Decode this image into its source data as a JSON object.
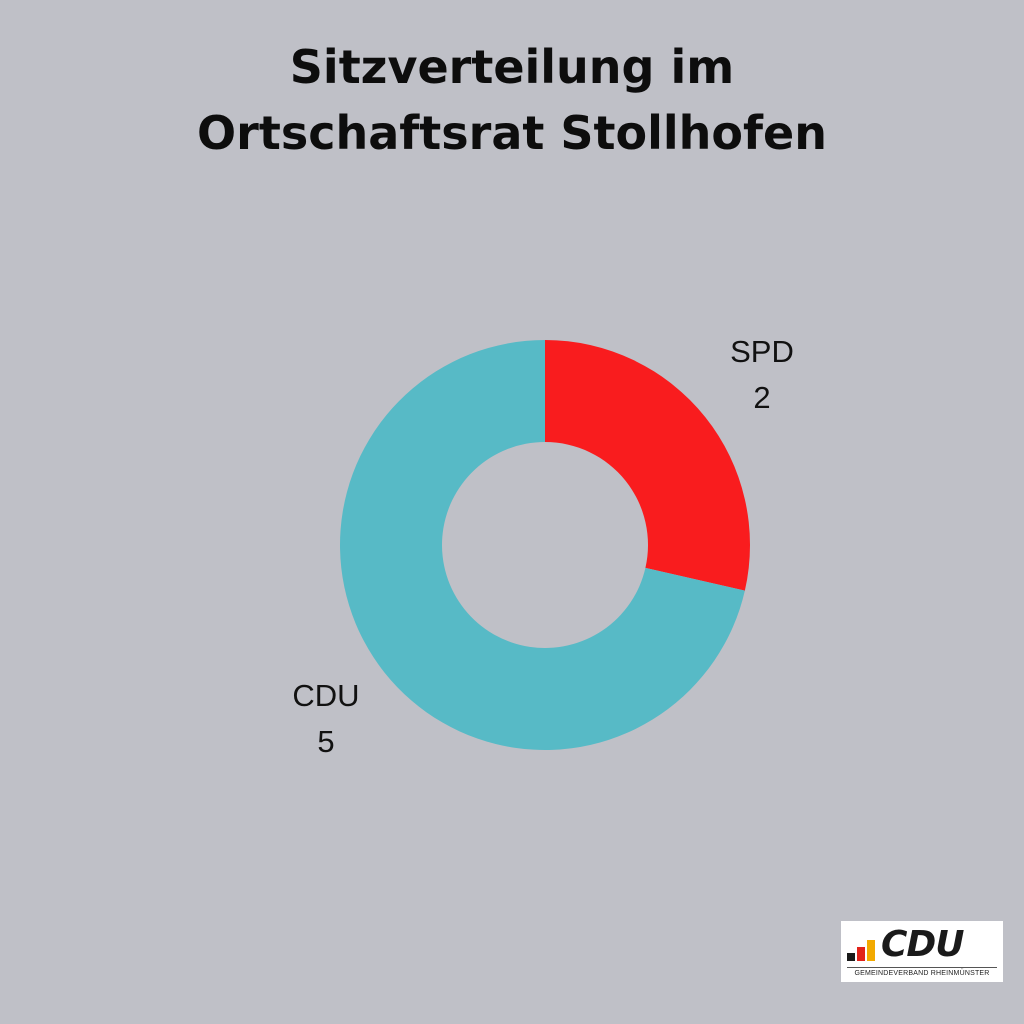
{
  "chart_data": {
    "type": "pie",
    "donut": true,
    "title": [
      "Sitzverteilung im",
      "Ortschaftsrat Stollhofen"
    ],
    "slices": [
      {
        "label": "SPD",
        "value": 2,
        "color": "#f91c1e"
      },
      {
        "label": "CDU",
        "value": 5,
        "color": "#57bac6"
      }
    ],
    "legend": "none",
    "labels": "outside"
  },
  "logo": {
    "wordmark": "CDU",
    "subtitle": "GEMEINDEVERBAND RHEINMÜNSTER",
    "bar_colors": [
      "#1a1a1a",
      "#e2231a",
      "#f2a900"
    ]
  },
  "colors": {
    "background": "#bfc0c7",
    "title_text": "#0d0d0d"
  }
}
